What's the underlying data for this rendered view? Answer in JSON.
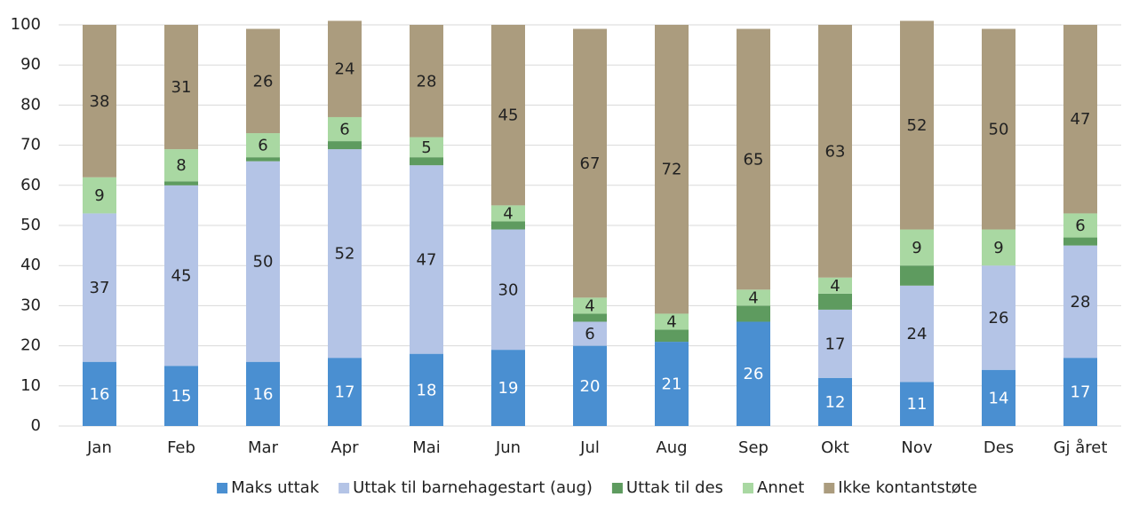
{
  "chart_data": {
    "type": "stacked_bar",
    "categories": [
      "Jan",
      "Feb",
      "Mar",
      "Apr",
      "Mai",
      "Jun",
      "Jul",
      "Aug",
      "Sep",
      "Okt",
      "Nov",
      "Des",
      "Gj året"
    ],
    "series": [
      {
        "name": "Maks uttak",
        "color": "#4a8fd1",
        "show_labels": true,
        "values": [
          16,
          15,
          16,
          17,
          18,
          19,
          20,
          21,
          26,
          12,
          11,
          14,
          17
        ]
      },
      {
        "name": "Uttak til barnehagestart (aug)",
        "color": "#b4c4e6",
        "show_labels": true,
        "values": [
          37,
          45,
          50,
          52,
          47,
          30,
          6,
          0,
          0,
          17,
          24,
          26,
          28
        ]
      },
      {
        "name": "Uttak til des",
        "color": "#5e9b5f",
        "show_labels": false,
        "values": [
          0,
          1,
          1,
          2,
          2,
          2,
          2,
          3,
          4,
          4,
          5,
          0,
          2
        ]
      },
      {
        "name": "Annet",
        "color": "#a9d8a2",
        "show_labels": true,
        "values": [
          9,
          8,
          6,
          6,
          5,
          4,
          4,
          4,
          4,
          4,
          9,
          9,
          6
        ]
      },
      {
        "name": "Ikke kontantstøte",
        "color": "#ab9c7e",
        "show_labels": true,
        "values": [
          38,
          31,
          26,
          24,
          28,
          45,
          67,
          72,
          65,
          63,
          52,
          50,
          47
        ]
      }
    ],
    "ylim": [
      0,
      100
    ],
    "yticks": [
      0,
      10,
      20,
      30,
      40,
      50,
      60,
      70,
      80,
      90,
      100
    ],
    "grid": true,
    "legend": "bottom"
  }
}
